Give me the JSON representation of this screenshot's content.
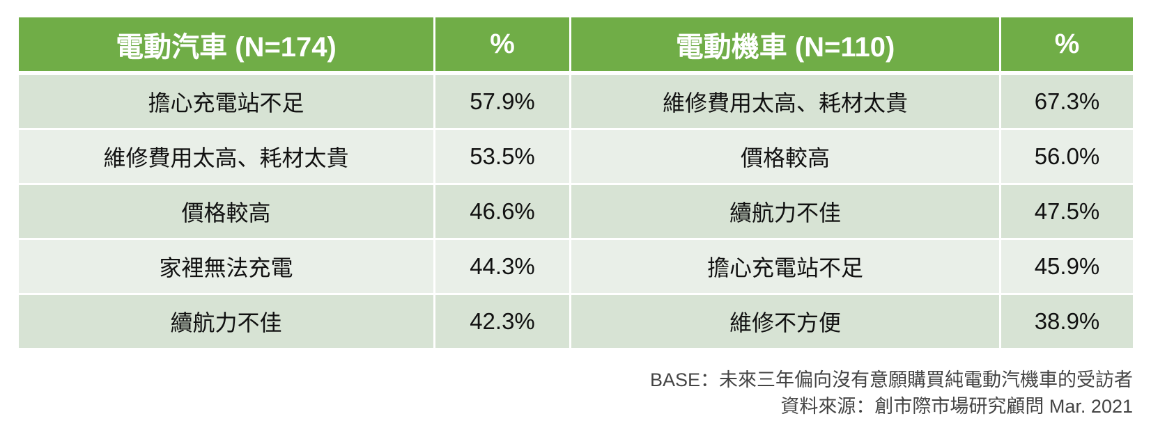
{
  "table": {
    "headers": [
      "電動汽車 (N=174)",
      "%",
      "電動機車 (N=110)",
      "%"
    ],
    "rows": [
      [
        "擔心充電站不足",
        "57.9%",
        "維修費用太高、耗材太貴",
        "67.3%"
      ],
      [
        "維修費用太高、耗材太貴",
        "53.5%",
        "價格較高",
        "56.0%"
      ],
      [
        "價格較高",
        "46.6%",
        "續航力不佳",
        "47.5%"
      ],
      [
        "家裡無法充電",
        "44.3%",
        "擔心充電站不足",
        "45.9%"
      ],
      [
        "續航力不佳",
        "42.3%",
        "維修不方便",
        "38.9%"
      ]
    ]
  },
  "notes": {
    "base": "BASE：未來三年偏向沒有意願購買純電動汽機車的受訪者",
    "source": "資料來源：創市際市場研究顧問 Mar. 2021"
  },
  "colors": {
    "header_bg": "#70ad47",
    "row_odd_bg": "#d7e3d4",
    "row_even_bg": "#e9efe8"
  }
}
